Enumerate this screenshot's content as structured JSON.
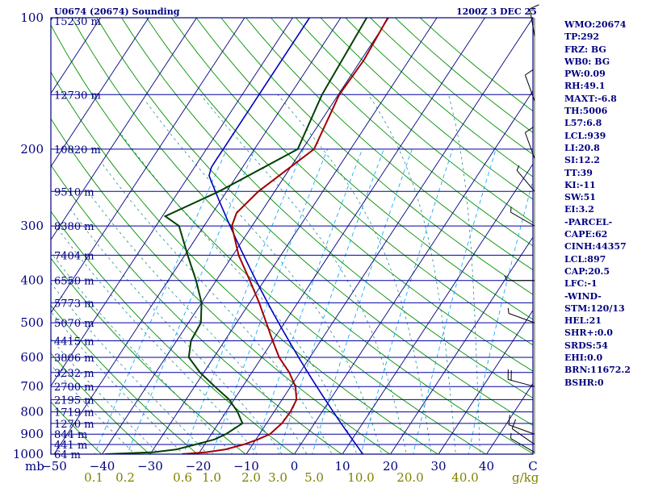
{
  "header": {
    "station": "U0674 (20674) Sounding",
    "valid_time": "1200Z  3 DEC 25"
  },
  "indices": [
    "WMO:20674",
    "TP:292",
    "FRZ: BG",
    "WB0: BG",
    "PW:0.09",
    "RH:49.1",
    "MAXT:-6.8",
    "TH:5006",
    "L57:6.8",
    "LCL:939",
    "LI:20.8",
    "SI:12.2",
    "TT:39",
    "KI:-11",
    "SW:51",
    "EI:3.2",
    "-PARCEL-",
    "CAPE:62",
    "CINH:44357",
    "LCL:897",
    "CAP:20.5",
    "LFC:-1",
    "-WIND-",
    "STM:120/13",
    "HEL:21",
    "SHR+:0.0",
    "SRDS:54",
    "EHI:0.0",
    "BRN:11672.2",
    "BSHR:0"
  ],
  "chart_data": {
    "type": "line",
    "chart_kind": "skew-T log-P",
    "title": "U0674 (20674) Sounding",
    "y_axis": {
      "unit": "mb",
      "scale": "log",
      "range": [
        1000,
        100
      ],
      "ticks": [
        100,
        200,
        300,
        400,
        500,
        600,
        700,
        800,
        900,
        1000
      ]
    },
    "x_axis": {
      "unit": "C",
      "range": [
        -50,
        50
      ],
      "skew": true,
      "ticks": [
        -50,
        -40,
        -30,
        -20,
        -10,
        0,
        10,
        20,
        30,
        40
      ]
    },
    "x_axis_label": "mb",
    "x_axis_unit_label": "C",
    "mixing_ratio_axis": {
      "unit": "g/kg",
      "ticks": [
        "0.1",
        "0.2",
        "0.6",
        "1.0",
        "2.0",
        "3.0",
        "5.0",
        "10.0",
        "20.0",
        "40.0"
      ]
    },
    "height_labels": [
      {
        "p": 100,
        "label": "15230 m"
      },
      {
        "p": 150,
        "label": "12730 m"
      },
      {
        "p": 200,
        "label": "10820 m"
      },
      {
        "p": 250,
        "label": "9510 m"
      },
      {
        "p": 300,
        "label": "8380 m"
      },
      {
        "p": 350,
        "label": "7404 m"
      },
      {
        "p": 400,
        "label": "6550 m"
      },
      {
        "p": 450,
        "label": "5773 m"
      },
      {
        "p": 500,
        "label": "5070 m"
      },
      {
        "p": 550,
        "label": "4415 m"
      },
      {
        "p": 600,
        "label": "3806 m"
      },
      {
        "p": 650,
        "label": "3232 m"
      },
      {
        "p": 700,
        "label": "2700 m"
      },
      {
        "p": 750,
        "label": "2195 m"
      },
      {
        "p": 800,
        "label": "1719 m"
      },
      {
        "p": 850,
        "label": "1270 m"
      },
      {
        "p": 900,
        "label": "844 m"
      },
      {
        "p": 950,
        "label": "441 m"
      },
      {
        "p": 1000,
        "label": "64 m"
      }
    ],
    "series": [
      {
        "key": "temperature",
        "color": "#a00000",
        "points": [
          [
            1000,
            -23.4
          ],
          [
            990,
            -18.6
          ],
          [
            975,
            -15.0
          ],
          [
            950,
            -11.8
          ],
          [
            925,
            -9.6
          ],
          [
            900,
            -7.8
          ],
          [
            850,
            -6.8
          ],
          [
            800,
            -6.6
          ],
          [
            750,
            -7.0
          ],
          [
            700,
            -9.0
          ],
          [
            650,
            -12.2
          ],
          [
            600,
            -16.4
          ],
          [
            550,
            -20.0
          ],
          [
            500,
            -23.8
          ],
          [
            450,
            -28.0
          ],
          [
            400,
            -33.0
          ],
          [
            350,
            -38.8
          ],
          [
            300,
            -44.2
          ],
          [
            280,
            -45.0
          ],
          [
            250,
            -43.4
          ],
          [
            200,
            -37.6
          ],
          [
            150,
            -39.8
          ],
          [
            125,
            -39.4
          ],
          [
            100,
            -40.2
          ]
        ]
      },
      {
        "key": "dewpoint",
        "color": "#004000",
        "points": [
          [
            1000,
            -39.4
          ],
          [
            990,
            -29.6
          ],
          [
            975,
            -25.2
          ],
          [
            950,
            -21.8
          ],
          [
            925,
            -18.6
          ],
          [
            900,
            -17.0
          ],
          [
            850,
            -15.0
          ],
          [
            800,
            -17.6
          ],
          [
            750,
            -21.0
          ],
          [
            700,
            -25.8
          ],
          [
            650,
            -30.8
          ],
          [
            600,
            -35.2
          ],
          [
            550,
            -37.0
          ],
          [
            500,
            -37.4
          ],
          [
            450,
            -40.0
          ],
          [
            400,
            -44.2
          ],
          [
            350,
            -49.4
          ],
          [
            300,
            -55.2
          ],
          [
            285,
            -59.4
          ],
          [
            250,
            -51.6
          ],
          [
            200,
            -41.0
          ],
          [
            150,
            -43.4
          ],
          [
            100,
            -44.6
          ]
        ]
      }
    ],
    "wind_barbs": [
      {
        "p": 990,
        "dir": 300,
        "spd": 5
      },
      {
        "p": 950,
        "dir": 305,
        "spd": 10
      },
      {
        "p": 900,
        "dir": 290,
        "spd": 10
      },
      {
        "p": 700,
        "dir": 285,
        "spd": 20
      },
      {
        "p": 500,
        "dir": 290,
        "spd": 5
      },
      {
        "p": 400,
        "dir": 270,
        "spd": 5
      },
      {
        "p": 300,
        "dir": 300,
        "spd": 5
      },
      {
        "p": 250,
        "dir": 320,
        "spd": 5
      },
      {
        "p": 210,
        "dir": 340,
        "spd": 10
      },
      {
        "p": 155,
        "dir": 340,
        "spd": 10
      },
      {
        "p": 110,
        "dir": 350,
        "spd": 10
      }
    ],
    "colors": {
      "isobar": "#0000a0",
      "isotherm": "#000080",
      "dry_adiabat": "#009000",
      "moist_adiabat": "#008080",
      "mixing_ratio": "#00a0ff",
      "frame": "#000080",
      "label": "#000080",
      "mixing_label": "#808000",
      "std_atmosphere": "#0000c0"
    }
  }
}
